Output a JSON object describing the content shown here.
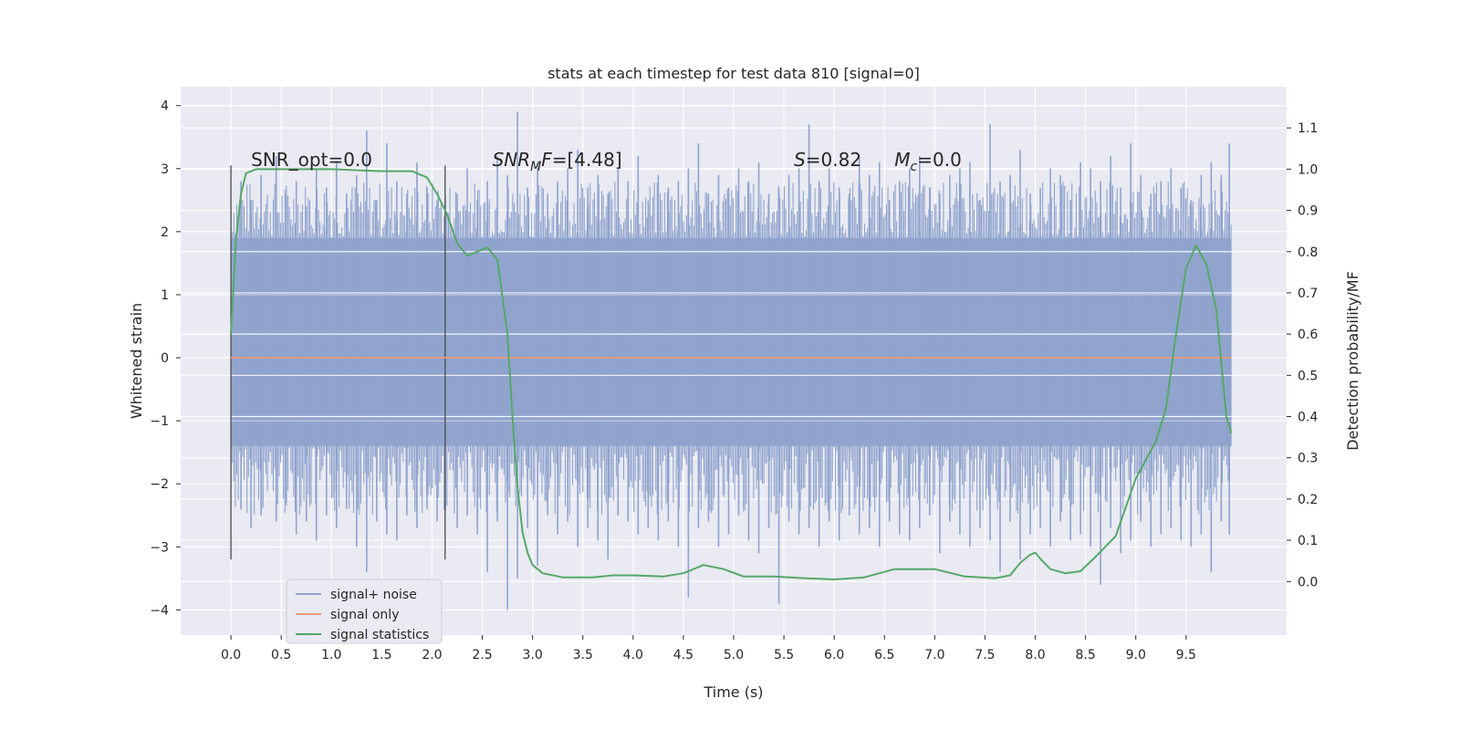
{
  "chart_data": {
    "type": "line",
    "title": "stats at each timestep for test data 810 [signal=0]",
    "xlabel": "Time (s)",
    "ylabel": "Whitened strain",
    "y2label": "Detection probability/MF",
    "xlim": [
      -0.5,
      10.5
    ],
    "ylim": [
      -4.4,
      4.3
    ],
    "y2lim": [
      -0.13,
      1.2
    ],
    "x_ticks": [
      "0.0",
      "0.5",
      "1.0",
      "1.5",
      "2.0",
      "2.5",
      "3.0",
      "3.5",
      "4.0",
      "4.5",
      "5.0",
      "5.5",
      "6.0",
      "6.5",
      "7.0",
      "7.5",
      "8.0",
      "8.5",
      "9.0",
      "9.5"
    ],
    "y_ticks": [
      "−4",
      "−3",
      "−2",
      "−1",
      "0",
      "1",
      "2",
      "3",
      "4"
    ],
    "y2_ticks": [
      "0.0",
      "0.1",
      "0.2",
      "0.3",
      "0.4",
      "0.5",
      "0.6",
      "0.7",
      "0.8",
      "0.9",
      "1.0",
      "1.1"
    ],
    "grid": true,
    "legend_position": "lower-left",
    "annotations": [
      {
        "label": "SNR_opt=0.0",
        "x": 0.2,
        "y": 3.0
      },
      {
        "label": "SNR",
        "sub": "M",
        "tail": "F=[4.48]",
        "italic": true,
        "x": 2.6,
        "y": 3.0
      },
      {
        "label": "S",
        "tail": "=0.82",
        "italic": true,
        "x": 5.6,
        "y": 3.0
      },
      {
        "label": "M",
        "sub": "c",
        "tail": "=0.0",
        "italic": true,
        "x": 6.6,
        "y": 3.0
      }
    ],
    "vlines": [
      0.0,
      2.13
    ],
    "noise_band": {
      "x_start": 0.0,
      "x_end": 9.95,
      "core_low": -1.4,
      "core_high": 1.9
    },
    "series": [
      {
        "name": "signal+ noise",
        "color": "#8fa3cd",
        "noise_spikes": {
          "x": [
            0.1,
            0.2,
            0.3,
            0.45,
            0.55,
            0.65,
            0.75,
            0.85,
            0.95,
            1.05,
            1.15,
            1.25,
            1.35,
            1.45,
            1.55,
            1.65,
            1.75,
            1.85,
            1.95,
            2.05,
            2.25,
            2.35,
            2.45,
            2.55,
            2.65,
            2.75,
            2.85,
            2.95,
            3.05,
            3.15,
            3.25,
            3.35,
            3.45,
            3.55,
            3.65,
            3.75,
            3.85,
            3.95,
            4.05,
            4.15,
            4.25,
            4.35,
            4.45,
            4.55,
            4.65,
            4.75,
            4.85,
            4.95,
            5.05,
            5.15,
            5.25,
            5.35,
            5.45,
            5.55,
            5.65,
            5.75,
            5.85,
            5.95,
            6.05,
            6.15,
            6.25,
            6.35,
            6.45,
            6.55,
            6.65,
            6.75,
            6.85,
            6.95,
            7.05,
            7.15,
            7.25,
            7.35,
            7.45,
            7.55,
            7.65,
            7.75,
            7.85,
            7.95,
            8.05,
            8.15,
            8.25,
            8.35,
            8.45,
            8.55,
            8.65,
            8.75,
            8.85,
            8.95,
            9.05,
            9.15,
            9.25,
            9.35,
            9.45,
            9.55,
            9.65,
            9.75,
            9.85,
            9.93
          ],
          "hi": [
            2.8,
            2.5,
            2.9,
            3.2,
            2.6,
            2.8,
            2.4,
            3.0,
            2.7,
            3.1,
            2.6,
            2.9,
            3.6,
            2.5,
            3.4,
            2.8,
            2.6,
            3.1,
            2.7,
            2.5,
            2.6,
            3.0,
            2.5,
            2.8,
            3.2,
            2.9,
            3.9,
            2.7,
            3.1,
            2.6,
            2.8,
            3.0,
            3.3,
            2.7,
            2.9,
            2.6,
            3.0,
            2.8,
            3.2,
            2.5,
            2.9,
            2.7,
            2.8,
            3.0,
            3.4,
            2.6,
            2.9,
            2.7,
            3.0,
            2.8,
            3.1,
            2.6,
            2.7,
            2.9,
            3.0,
            3.7,
            2.8,
            3.0,
            2.7,
            2.6,
            3.2,
            2.9,
            3.1,
            2.5,
            2.8,
            3.0,
            3.2,
            2.7,
            2.6,
            2.9,
            3.0,
            3.1,
            2.5,
            3.7,
            2.8,
            2.9,
            3.3,
            2.6,
            2.7,
            3.0,
            2.9,
            2.5,
            3.1,
            3.0,
            2.8,
            3.2,
            2.7,
            3.4,
            2.9,
            2.6,
            2.8,
            3.0,
            2.7,
            2.5,
            2.9,
            3.1,
            2.9,
            3.4
          ],
          "lo": [
            -2.4,
            -2.7,
            -2.5,
            -2.6,
            -2.3,
            -2.8,
            -2.6,
            -2.9,
            -2.5,
            -2.7,
            -2.4,
            -3.0,
            -3.4,
            -2.6,
            -2.8,
            -2.9,
            -2.5,
            -2.7,
            -2.4,
            -2.6,
            -2.7,
            -2.5,
            -2.8,
            -3.4,
            -2.6,
            -4.0,
            -3.5,
            -2.7,
            -3.3,
            -2.5,
            -2.8,
            -2.6,
            -3.0,
            -2.7,
            -2.9,
            -3.2,
            -2.5,
            -2.6,
            -2.8,
            -2.7,
            -2.9,
            -2.6,
            -3.0,
            -3.8,
            -2.7,
            -2.6,
            -3.0,
            -2.8,
            -2.5,
            -2.9,
            -3.1,
            -2.7,
            -3.9,
            -2.6,
            -2.8,
            -2.7,
            -3.0,
            -2.6,
            -2.9,
            -2.5,
            -2.8,
            -2.7,
            -3.0,
            -2.6,
            -2.8,
            -2.9,
            -2.7,
            -2.5,
            -3.1,
            -2.6,
            -2.8,
            -3.0,
            -2.7,
            -2.9,
            -3.4,
            -2.6,
            -3.2,
            -2.8,
            -2.7,
            -3.0,
            -2.6,
            -2.9,
            -2.8,
            -3.0,
            -3.6,
            -2.7,
            -3.1,
            -2.9,
            -2.6,
            -3.0,
            -2.8,
            -2.7,
            -2.9,
            -3.0,
            -2.8,
            -3.4,
            -2.6,
            -2.8
          ]
        }
      },
      {
        "name": "signal only",
        "color": "#e59b7d",
        "x": [
          0.0,
          9.95
        ],
        "y": [
          0.0,
          0.0
        ]
      },
      {
        "name": "signal statistics",
        "axis": "right",
        "color": "#55a868",
        "x": [
          0.0,
          0.05,
          0.1,
          0.15,
          0.25,
          0.5,
          1.0,
          1.5,
          1.8,
          1.95,
          2.05,
          2.15,
          2.25,
          2.35,
          2.45,
          2.55,
          2.65,
          2.75,
          2.8,
          2.85,
          2.9,
          2.95,
          3.0,
          3.1,
          3.3,
          3.6,
          3.8,
          4.0,
          4.3,
          4.5,
          4.7,
          4.9,
          5.1,
          5.4,
          5.7,
          6.0,
          6.3,
          6.6,
          6.8,
          7.0,
          7.3,
          7.6,
          7.75,
          7.85,
          7.95,
          8.0,
          8.05,
          8.15,
          8.3,
          8.45,
          8.6,
          8.8,
          9.0,
          9.2,
          9.3,
          9.4,
          9.5,
          9.6,
          9.7,
          9.8,
          9.9,
          9.95
        ],
        "y": [
          0.6,
          0.83,
          0.94,
          0.99,
          1.0,
          1.0,
          1.0,
          0.995,
          0.995,
          0.98,
          0.94,
          0.89,
          0.82,
          0.79,
          0.8,
          0.81,
          0.78,
          0.6,
          0.4,
          0.23,
          0.12,
          0.07,
          0.04,
          0.02,
          0.01,
          0.01,
          0.015,
          0.015,
          0.012,
          0.02,
          0.04,
          0.03,
          0.012,
          0.012,
          0.008,
          0.005,
          0.01,
          0.03,
          0.03,
          0.03,
          0.012,
          0.008,
          0.015,
          0.045,
          0.065,
          0.07,
          0.055,
          0.03,
          0.02,
          0.025,
          0.06,
          0.11,
          0.25,
          0.34,
          0.42,
          0.6,
          0.76,
          0.815,
          0.77,
          0.66,
          0.4,
          0.36
        ]
      }
    ]
  },
  "legend": {
    "items": [
      {
        "label": "signal+ noise",
        "color": "#8fa3cd"
      },
      {
        "label": "signal only",
        "color": "#e59b7d"
      },
      {
        "label": "signal statistics",
        "color": "#55a868"
      }
    ]
  },
  "colors": {
    "plot_bg": "#e9eaf2",
    "grid": "#ffffff",
    "vline": "#4c4c4c"
  }
}
